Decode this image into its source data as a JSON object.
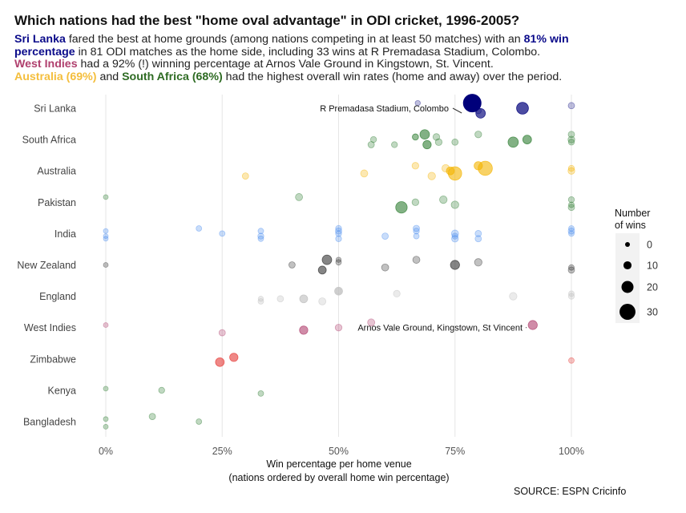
{
  "title": "Which nations had the best \"home oval advantage\" in ODI cricket, 1996-2005?",
  "subtitle": {
    "line1": {
      "hl1": "Sri Lanka",
      "t1": " fared the best at home grounds (among nations competing in at least 50 matches) with an ",
      "hl2": "81% win"
    },
    "line2": {
      "hl1": "percentage",
      "t1": " in 81 ODI matches as the home side, including 33 wins at R Premadasa Stadium, Colombo."
    },
    "line3": {
      "hl1": "West Indies",
      "t1": " had a 92% (!) winning percentage at Arnos Vale Ground in Kingstown, St. Vincent."
    },
    "line4": {
      "hl1": "Australia (69%)",
      "t1": " and ",
      "hl2": "South Africa (68%)",
      "t2": " had the highest overall win rates (home and away) over the period."
    }
  },
  "source": "SOURCE: ESPN Cricinfo",
  "colors": {
    "sri_lanka": "#0a0a8a",
    "west_indies": "#b0406e",
    "australia": "#f4be3c",
    "south_africa": "#2e6b23"
  },
  "chart_data": {
    "type": "scatter",
    "xlabel": "Win percentage per home venue",
    "xlabel2": "(nations ordered by overall home win percentage)",
    "x_ticks": [
      {
        "value": 0,
        "label": "0%"
      },
      {
        "value": 25,
        "label": "25%"
      },
      {
        "value": 50,
        "label": "50%"
      },
      {
        "value": 75,
        "label": "75%"
      },
      {
        "value": 100,
        "label": "100%"
      }
    ],
    "xlim": [
      0,
      100
    ],
    "grid": "vertical",
    "legend": {
      "title_line1": "Number",
      "title_line2": "of wins",
      "placement": "right",
      "entries": [
        {
          "label": "0",
          "wins": 0
        },
        {
          "label": "10",
          "wins": 10
        },
        {
          "label": "20",
          "wins": 20
        },
        {
          "label": "30",
          "wins": 30
        }
      ]
    },
    "annotations": [
      {
        "text": "R Premadasa Stadium, Colombo",
        "country": "Sri Lanka",
        "x": 78.7,
        "wins": 33
      },
      {
        "text": "Arnos Vale Ground, Kingstown, St Vincent",
        "country": "West Indies",
        "x": 91.7,
        "wins": 11
      }
    ],
    "series": [
      {
        "name": "Sri Lanka",
        "color": "#00007a",
        "points": [
          {
            "x": 67,
            "wins": 1,
            "alpha": 0.25
          },
          {
            "x": 78.7,
            "wins": 33,
            "alpha": 1
          },
          {
            "x": 80.5,
            "wins": 12,
            "alpha": 0.65
          },
          {
            "x": 89.5,
            "wins": 18,
            "alpha": 0.7
          },
          {
            "x": 100,
            "wins": 4,
            "alpha": 0.25
          },
          {
            "x": 80,
            "wins": 3,
            "alpha": 0.25
          }
        ]
      },
      {
        "name": "South Africa",
        "color": "#2e7d32",
        "points": [
          {
            "x": 57,
            "wins": 4
          },
          {
            "x": 57.5,
            "wins": 3
          },
          {
            "x": 62,
            "wins": 3
          },
          {
            "x": 66.5,
            "wins": 4
          },
          {
            "x": 66.5,
            "wins": 3
          },
          {
            "x": 69,
            "wins": 9
          },
          {
            "x": 68.5,
            "wins": 12
          },
          {
            "x": 71,
            "wins": 5
          },
          {
            "x": 71.5,
            "wins": 5
          },
          {
            "x": 75,
            "wins": 4
          },
          {
            "x": 80,
            "wins": 5
          },
          {
            "x": 87.5,
            "wins": 14
          },
          {
            "x": 90.5,
            "wins": 10
          },
          {
            "x": 100,
            "wins": 3
          },
          {
            "x": 100,
            "wins": 5
          },
          {
            "x": 100,
            "wins": 4
          }
        ]
      },
      {
        "name": "Australia",
        "color": "#f4b400",
        "points": [
          {
            "x": 30,
            "wins": 4
          },
          {
            "x": 55.5,
            "wins": 6
          },
          {
            "x": 66.5,
            "wins": 5
          },
          {
            "x": 70,
            "wins": 7
          },
          {
            "x": 73,
            "wins": 7
          },
          {
            "x": 74,
            "wins": 8
          },
          {
            "x": 75,
            "wins": 22
          },
          {
            "x": 80,
            "wins": 9
          },
          {
            "x": 81.5,
            "wins": 24
          },
          {
            "x": 100,
            "wins": 5
          },
          {
            "x": 100,
            "wins": 3
          }
        ]
      },
      {
        "name": "Pakistan",
        "color": "#2e7d32",
        "points": [
          {
            "x": 0,
            "wins": 0
          },
          {
            "x": 41.5,
            "wins": 6
          },
          {
            "x": 63.5,
            "wins": 17
          },
          {
            "x": 66.5,
            "wins": 5
          },
          {
            "x": 72.5,
            "wins": 7
          },
          {
            "x": 75,
            "wins": 7
          },
          {
            "x": 100,
            "wins": 3
          },
          {
            "x": 100,
            "wins": 4
          },
          {
            "x": 100,
            "wins": 2
          }
        ]
      },
      {
        "name": "India",
        "color": "#4d8ff0",
        "points": [
          {
            "x": 0,
            "wins": 0
          },
          {
            "x": 0,
            "wins": 0
          },
          {
            "x": 0,
            "wins": 0
          },
          {
            "x": 20,
            "wins": 2
          },
          {
            "x": 25,
            "wins": 2
          },
          {
            "x": 33.3,
            "wins": 3
          },
          {
            "x": 33.3,
            "wins": 2
          },
          {
            "x": 33.3,
            "wins": 2
          },
          {
            "x": 50,
            "wins": 4
          },
          {
            "x": 50,
            "wins": 3
          },
          {
            "x": 50,
            "wins": 3
          },
          {
            "x": 50,
            "wins": 3
          },
          {
            "x": 60,
            "wins": 4
          },
          {
            "x": 66.7,
            "wins": 3
          },
          {
            "x": 66.7,
            "wins": 4
          },
          {
            "x": 66.7,
            "wins": 2
          },
          {
            "x": 75,
            "wins": 5
          },
          {
            "x": 75,
            "wins": 6
          },
          {
            "x": 75,
            "wins": 3
          },
          {
            "x": 80,
            "wins": 4
          },
          {
            "x": 80,
            "wins": 4
          },
          {
            "x": 100,
            "wins": 4
          },
          {
            "x": 100,
            "wins": 2
          },
          {
            "x": 100,
            "wins": 2
          }
        ]
      },
      {
        "name": "New Zealand",
        "color": "#333333",
        "points": [
          {
            "x": 0,
            "wins": 0
          },
          {
            "x": 40,
            "wins": 4
          },
          {
            "x": 46.5,
            "wins": 8
          },
          {
            "x": 47.5,
            "wins": 12
          },
          {
            "x": 50,
            "wins": 1
          },
          {
            "x": 50,
            "wins": 2
          },
          {
            "x": 60,
            "wins": 6
          },
          {
            "x": 66.7,
            "wins": 6
          },
          {
            "x": 75,
            "wins": 11
          },
          {
            "x": 80,
            "wins": 7
          },
          {
            "x": 100,
            "wins": 4
          },
          {
            "x": 100,
            "wins": 2
          }
        ]
      },
      {
        "name": "England",
        "color": "#bdbdbd",
        "points": [
          {
            "x": 33.3,
            "wins": 2
          },
          {
            "x": 33.3,
            "wins": 1
          },
          {
            "x": 37.5,
            "wins": 4
          },
          {
            "x": 42.5,
            "wins": 8
          },
          {
            "x": 46.5,
            "wins": 6
          },
          {
            "x": 50,
            "wins": 8
          },
          {
            "x": 50,
            "wins": 3
          },
          {
            "x": 62.5,
            "wins": 5
          },
          {
            "x": 87.5,
            "wins": 7
          },
          {
            "x": 100,
            "wins": 2
          },
          {
            "x": 100,
            "wins": 3
          }
        ]
      },
      {
        "name": "West Indies",
        "color": "#b0406e",
        "points": [
          {
            "x": 0,
            "wins": 0
          },
          {
            "x": 25,
            "wins": 4
          },
          {
            "x": 42.5,
            "wins": 9
          },
          {
            "x": 50,
            "wins": 5
          },
          {
            "x": 57,
            "wins": 6
          },
          {
            "x": 91.7,
            "wins": 11
          }
        ]
      },
      {
        "name": "Zimbabwe",
        "color": "#e53935",
        "points": [
          {
            "x": 24.5,
            "wins": 10
          },
          {
            "x": 27.5,
            "wins": 9
          },
          {
            "x": 100,
            "wins": 2
          }
        ]
      },
      {
        "name": "Kenya",
        "color": "#2e7d32",
        "points": [
          {
            "x": 0,
            "wins": 0
          },
          {
            "x": 12,
            "wins": 3
          },
          {
            "x": 33.3,
            "wins": 2
          }
        ]
      },
      {
        "name": "Bangladesh",
        "color": "#2e7d32",
        "points": [
          {
            "x": 0,
            "wins": 0
          },
          {
            "x": 0,
            "wins": 0
          },
          {
            "x": 10,
            "wins": 4
          },
          {
            "x": 20,
            "wins": 2
          }
        ]
      }
    ]
  }
}
